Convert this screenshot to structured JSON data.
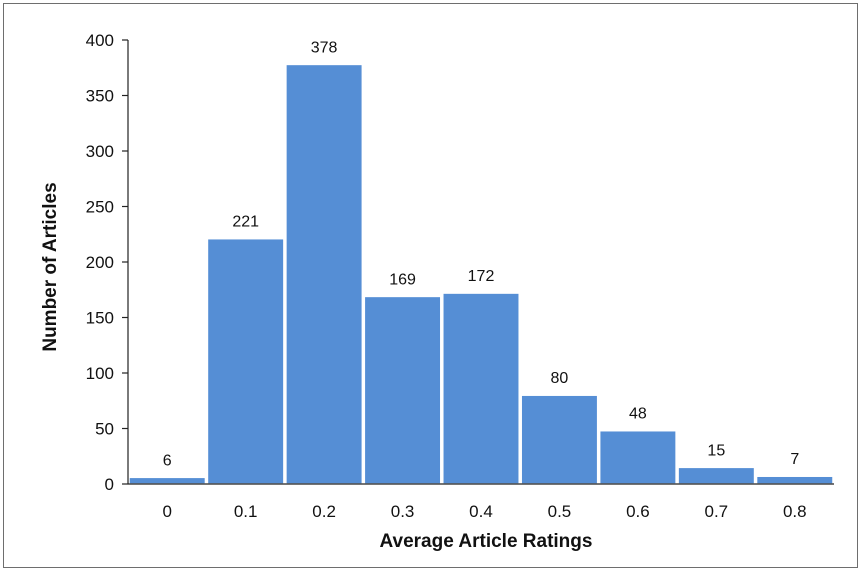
{
  "chart_data": {
    "type": "bar",
    "title": "",
    "xlabel": "Average Article Ratings",
    "ylabel": "Number of Articles",
    "categories": [
      "0",
      "0.1",
      "0.2",
      "0.3",
      "0.4",
      "0.5",
      "0.6",
      "0.7",
      "0.8"
    ],
    "values": [
      6,
      221,
      378,
      169,
      172,
      80,
      48,
      15,
      7
    ],
    "data_labels": [
      "6",
      "221",
      "378",
      "169",
      "172",
      "80",
      "48",
      "15",
      "7"
    ],
    "yticks": [
      0,
      50,
      100,
      150,
      200,
      250,
      300,
      350,
      400
    ],
    "ylim": [
      0,
      400
    ],
    "grid": false,
    "legend": "none",
    "bar_color": "#558ed5",
    "bar_edge_color": "#ffffff"
  }
}
